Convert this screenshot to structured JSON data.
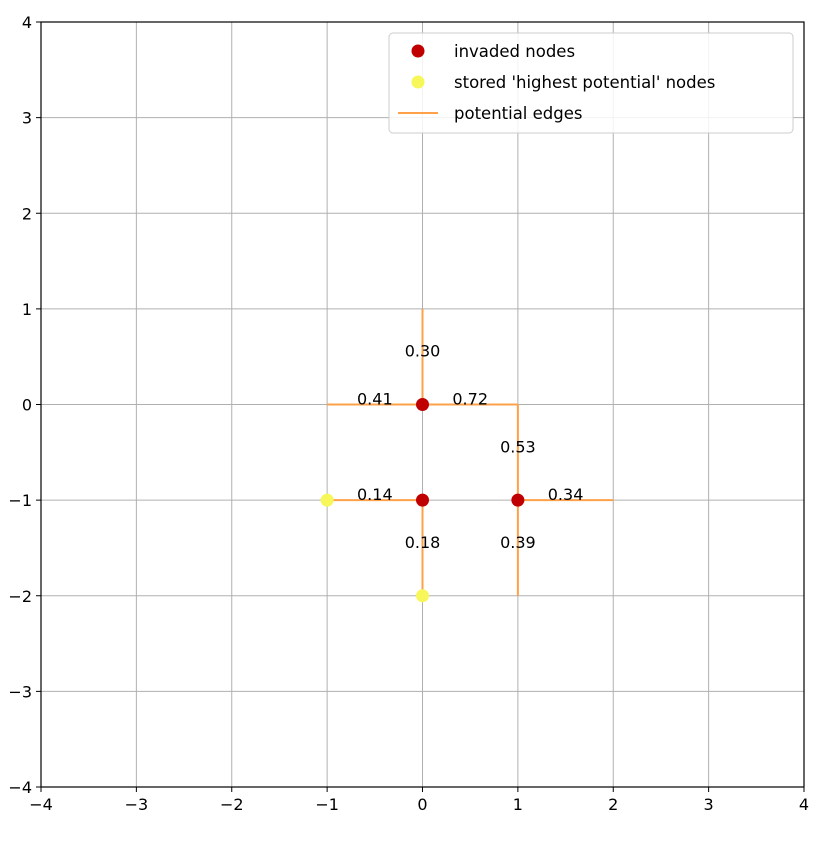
{
  "chart_data": {
    "type": "scatter",
    "xlim": [
      -4,
      4
    ],
    "ylim": [
      -4,
      4
    ],
    "xticks": [
      -4,
      -3,
      -2,
      -1,
      0,
      1,
      2,
      3,
      4
    ],
    "yticks": [
      -4,
      -3,
      -2,
      -1,
      0,
      1,
      2,
      3,
      4
    ],
    "xtick_labels": [
      "−4",
      "−3",
      "−2",
      "−1",
      "0",
      "1",
      "2",
      "3",
      "4"
    ],
    "ytick_labels": [
      "−4",
      "−3",
      "−2",
      "−1",
      "0",
      "1",
      "2",
      "3",
      "4"
    ],
    "grid": true,
    "legend_position": "top-right",
    "series": [
      {
        "name": "invaded nodes",
        "kind": "points",
        "color": "#c00000",
        "points": [
          [
            0,
            0
          ],
          [
            0,
            -1
          ],
          [
            1,
            -1
          ]
        ]
      },
      {
        "name": "stored 'highest potential' nodes",
        "kind": "points",
        "color": "#f7f75a",
        "points": [
          [
            -1,
            -1
          ],
          [
            0,
            -2
          ]
        ]
      },
      {
        "name": "potential edges",
        "kind": "segments",
        "color": "#ffa04a",
        "segments": [
          {
            "from": [
              0,
              0
            ],
            "to": [
              0,
              1
            ],
            "label": "0.30"
          },
          {
            "from": [
              0,
              0
            ],
            "to": [
              -1,
              0
            ],
            "label": "0.41"
          },
          {
            "from": [
              0,
              0
            ],
            "to": [
              1,
              0
            ],
            "label": "0.72"
          },
          {
            "from": [
              1,
              0
            ],
            "to": [
              1,
              -1
            ],
            "label": "0.53"
          },
          {
            "from": [
              0,
              -1
            ],
            "to": [
              -1,
              -1
            ],
            "label": "0.14"
          },
          {
            "from": [
              1,
              -1
            ],
            "to": [
              2,
              -1
            ],
            "label": "0.34"
          },
          {
            "from": [
              0,
              -1
            ],
            "to": [
              0,
              -2
            ],
            "label": "0.18"
          },
          {
            "from": [
              1,
              -1
            ],
            "to": [
              1,
              -2
            ],
            "label": "0.39"
          }
        ]
      }
    ]
  }
}
